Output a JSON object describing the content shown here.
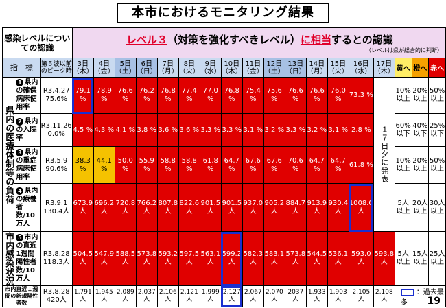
{
  "title": "本市におけるモニタリング結果",
  "page_number": "19",
  "level_label": "感染レベルについての認識",
  "recognition": {
    "prefix_level": "レベル３",
    "middle": "（対策を強化すべきレベル）",
    "highlight": "に相当",
    "suffix": "するとの認識",
    "note": "（レベルは県が総合的に判断）"
  },
  "header": {
    "indicator": "指　標",
    "peak": "第５波以前のピーク時",
    "dates": [
      {
        "d": "3日",
        "w": "（木）"
      },
      {
        "d": "4日",
        "w": "（金）"
      },
      {
        "d": "5日",
        "w": "（土）"
      },
      {
        "d": "6日",
        "w": "（日）"
      },
      {
        "d": "7日",
        "w": "（月）"
      },
      {
        "d": "8日",
        "w": "（火）"
      },
      {
        "d": "9日",
        "w": "（水）"
      },
      {
        "d": "10日",
        "w": "（木）"
      },
      {
        "d": "11日",
        "w": "（金）"
      },
      {
        "d": "12日",
        "w": "（土）"
      },
      {
        "d": "13日",
        "w": "（日）"
      },
      {
        "d": "14日",
        "w": "（月）"
      },
      {
        "d": "15日",
        "w": "（火）"
      },
      {
        "d": "16日",
        "w": "（水）"
      },
      {
        "d": "17日",
        "w": "（木）"
      }
    ],
    "yellow": "黄へ",
    "orange": "橙へ",
    "red": "赤へ"
  },
  "category_medical": "県内の医療体制等の負荷",
  "category_infection": "市内感染状況",
  "day17_note": "１７日夕に発表",
  "rows": [
    {
      "num": "1",
      "label": "県内の確保病床使用率",
      "peak": "R3.4.27 75.6%",
      "values": [
        "79.1 %",
        "78.9 %",
        "76.6 %",
        "76.2 %",
        "76.8 %",
        "77.4 %",
        "77.0 %",
        "76.8 %",
        "75.4 %",
        "75.6 %",
        "76.6 %",
        "76.6 %",
        "76.0 %",
        "73.3 %"
      ],
      "thr": [
        "10% 以上",
        "20% 以上",
        "50% 以上"
      ]
    },
    {
      "num": "2",
      "label": "県内の入院率",
      "peak": "R3.11.26 0.0%",
      "values": [
        "4.5 %",
        "4.3 %",
        "4.1 %",
        "3.8 %",
        "3.6 %",
        "3.6 %",
        "3.3 %",
        "3.3 %",
        "3.1 %",
        "3.2 %",
        "3.3 %",
        "3.2 %",
        "3.1 %",
        "2.8 %"
      ],
      "thr": [
        "60% 以下",
        "40% 以下",
        "25% 以下"
      ]
    },
    {
      "num": "3",
      "label": "県内の重症病床使用率",
      "peak": "R3.5.9 90.6%",
      "values": [
        "38.3 %",
        "44.1 %",
        "50.0 %",
        "55.9 %",
        "58.8 %",
        "58.8 %",
        "61.8 %",
        "64.7 %",
        "67.6 %",
        "67.6 %",
        "70.6 %",
        "64.7 %",
        "64.7 %",
        "61.8 %"
      ],
      "thr": [
        "10% 以上",
        "20% 以上",
        "50% 以上"
      ]
    },
    {
      "num": "4",
      "label": "県内の療養者数/10万人",
      "peak": "R3.9.1 130.4人",
      "values": [
        "673.9 人",
        "696.2 人",
        "720.8 人",
        "766.2 人",
        "807.8 人",
        "822.6 人",
        "901.5 人",
        "901.5 人",
        "937.0 人",
        "905.2 人",
        "884.7 人",
        "913.9 人",
        "930.4 人",
        "1008.0 人"
      ],
      "thr": [
        "5人 以上",
        "20人 以上",
        "30人 以上"
      ]
    },
    {
      "num": "5",
      "label": "市内の直近1週間陽性者数/10万人",
      "peak": "R3.8.28 118.3人",
      "values": [
        "504.5 人",
        "547.9 人",
        "588.5 人",
        "573.8 人",
        "593.2 人",
        "597.5 人",
        "563.1 人",
        "599.2 人",
        "582.3 人",
        "583.1 人",
        "573.8 人",
        "544.5 人",
        "536.1 人",
        "593.0 人",
        "593.8 人"
      ],
      "thr": [
        "5人 以上",
        "15人 以上",
        "25人 以上"
      ]
    }
  ],
  "count_row": {
    "label": "市内直近１週間の新規陽性者数",
    "peak": "R3.8.28 420人",
    "values": [
      "1,791 人",
      "1,945 人",
      "2,089 人",
      "2,037 人",
      "2,106 人",
      "2,121 人",
      "1,999 人",
      "2,127 人",
      "2,067 人",
      "2,070 人",
      "2037 人",
      "1,933 人",
      "1,903 人",
      "2,105 人",
      "2,108 人"
    ],
    "legend": "：過去最多"
  }
}
